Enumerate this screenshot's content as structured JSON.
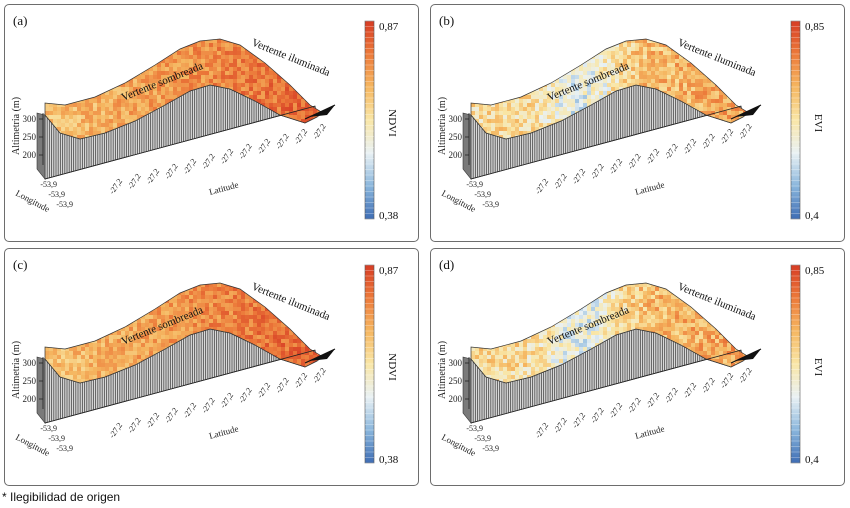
{
  "panels": [
    {
      "id": "a",
      "letter": "(a)",
      "index": "NDVI",
      "scale_max": "0,87",
      "scale_min": "0,38",
      "colormap": "ndvi",
      "label_shaded": "Vertente sombreada",
      "label_lit": "Vertente iluminada"
    },
    {
      "id": "b",
      "letter": "(b)",
      "index": "EVI",
      "scale_max": "0,85",
      "scale_min": "0,4",
      "colormap": "evi",
      "label_shaded": "Vertente sombreada",
      "label_lit": "Vertente iluminada"
    },
    {
      "id": "c",
      "letter": "(c)",
      "index": "NDVI",
      "scale_max": "0,87",
      "scale_min": "0,38",
      "colormap": "ndvi",
      "label_shaded": "Vertente sombreada",
      "label_lit": "Vertente iluminada"
    },
    {
      "id": "d",
      "letter": "(d)",
      "index": "EVI",
      "scale_max": "0,85",
      "scale_min": "0,4",
      "colormap": "evi",
      "label_shaded": "Vertente sombreada",
      "label_lit": "Vertente iluminada"
    }
  ],
  "axes": {
    "z_label": "Altimetria (m)",
    "z_ticks": [
      "300",
      "250",
      "200"
    ],
    "x_label": "Latitude",
    "x_ticks": [
      "-27,2",
      "-27,2",
      "-27,2",
      "-27,2",
      "-27,2",
      "-27,2",
      "-27,2",
      "-27,2",
      "-27,2",
      "-27,2",
      "-27,2",
      "-27,2"
    ],
    "y_label": "Longitude",
    "y_ticks": [
      "-53,9",
      "-53,9",
      "-53,9"
    ]
  },
  "colors": {
    "ndvi_ramp": [
      "#3e6db4",
      "#8ab6dc",
      "#e9f1f4",
      "#f9e6a6",
      "#f5b660",
      "#ec7a3a",
      "#d63c24"
    ],
    "evi_ramp": [
      "#3e6db4",
      "#8ab6dc",
      "#e9f1f4",
      "#f9e6a6",
      "#f5b660",
      "#ec7a3a",
      "#d63c24"
    ],
    "terrain_side": "#8a8a8a"
  },
  "footnote": "* Ilegibilidad de origen"
}
